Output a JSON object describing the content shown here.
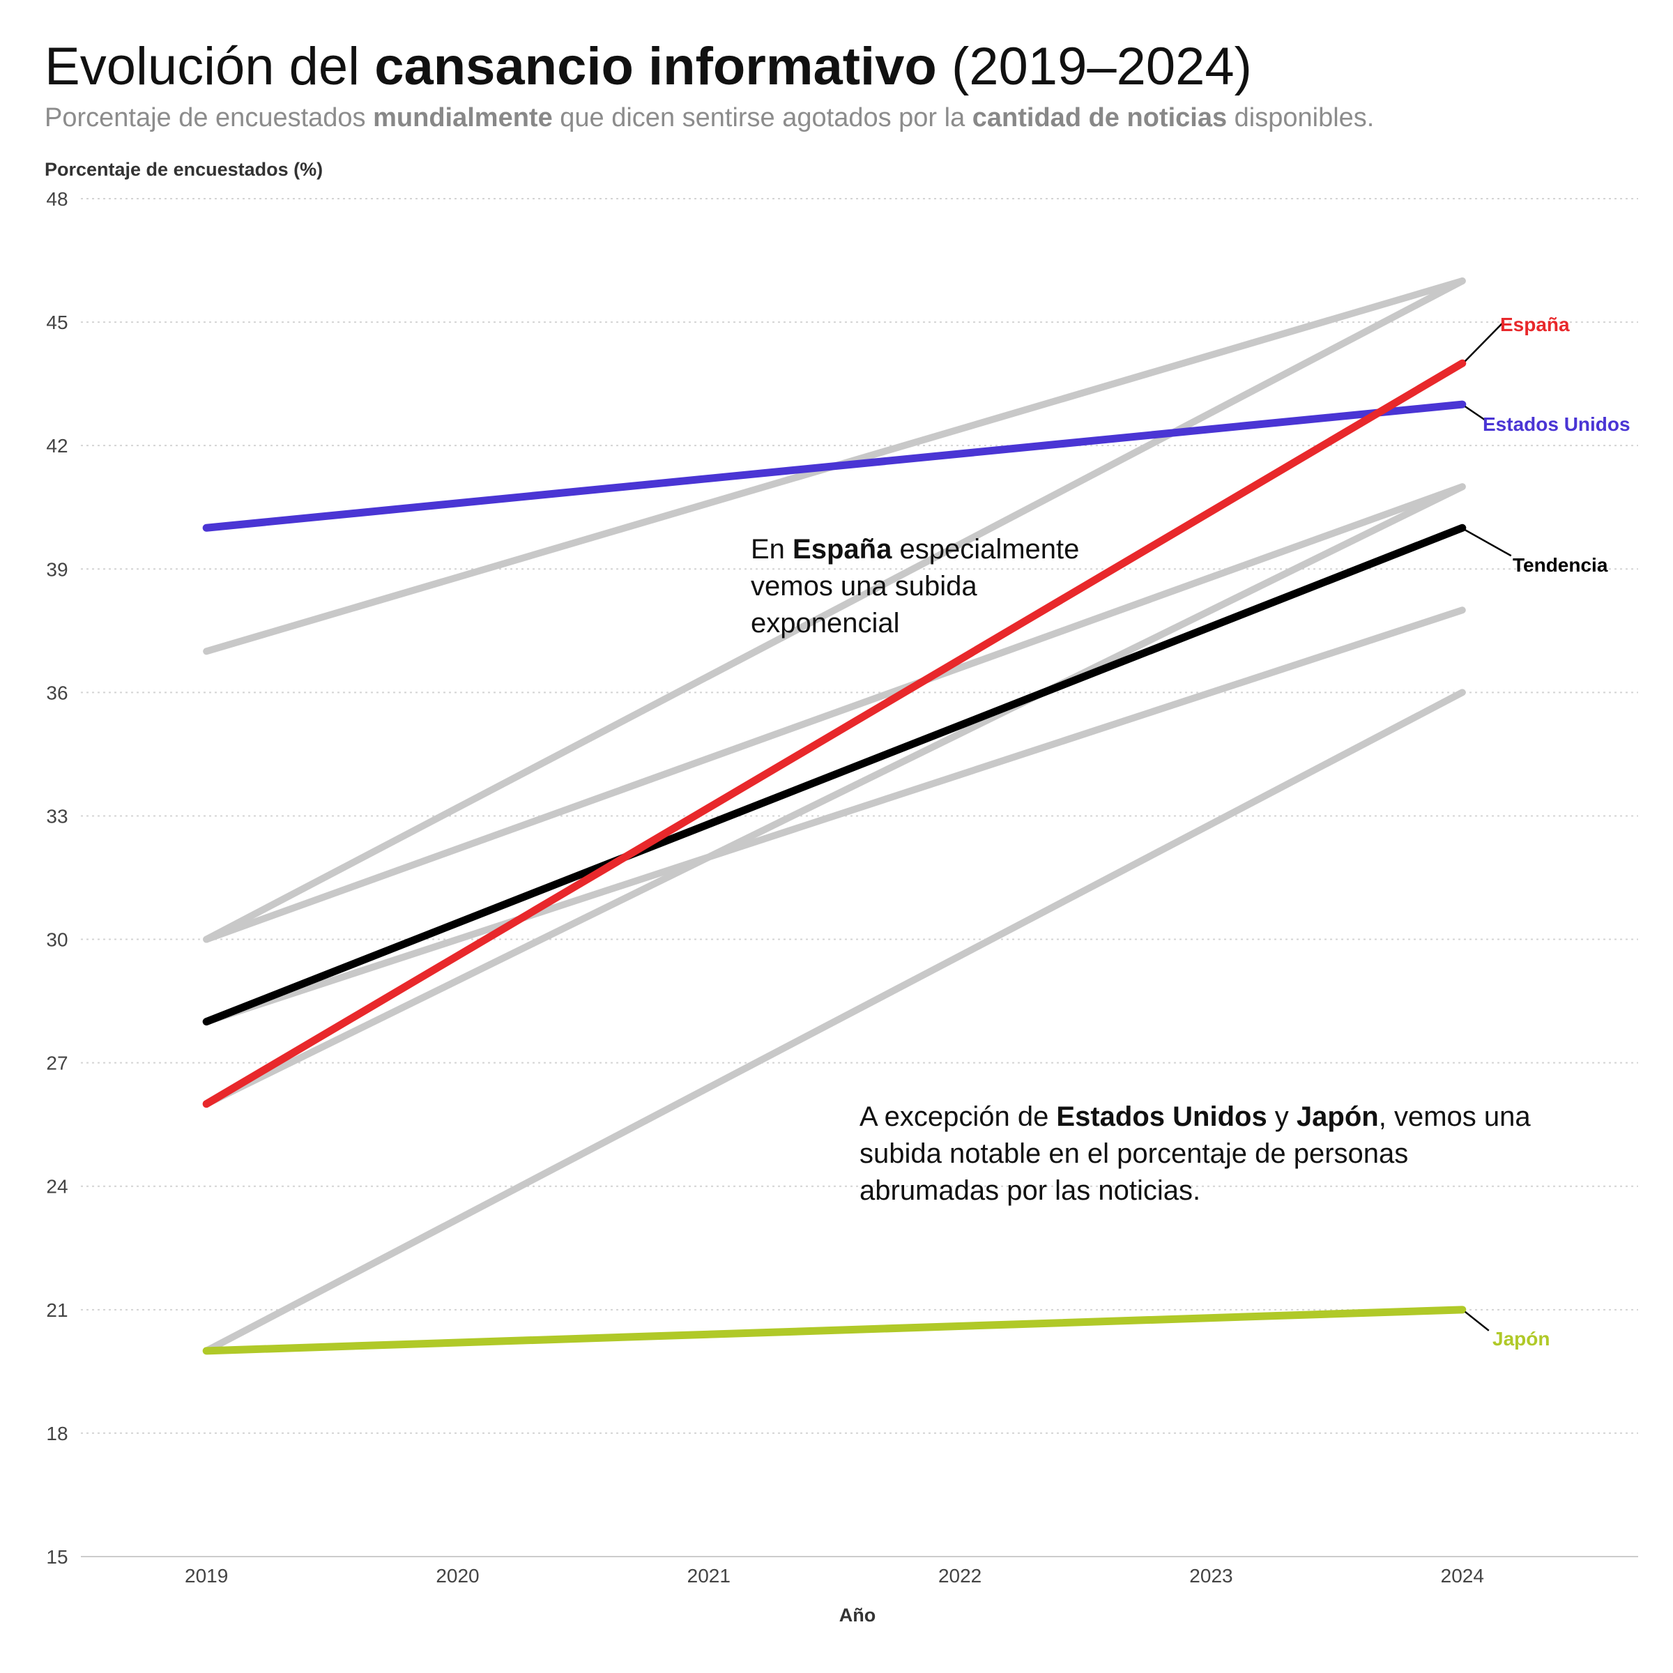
{
  "header": {
    "title_pre": "Evolución del ",
    "title_bold": "cansancio informativo",
    "title_post": " (2019–2024)",
    "subtitle_1": "Porcentaje de encuestados ",
    "subtitle_bold_1": "mundialmente",
    "subtitle_2": " que dicen sentirse agotados por la ",
    "subtitle_bold_2": "cantidad de noticias",
    "subtitle_3": " disponibles."
  },
  "annotations": {
    "spain_pre": "En ",
    "spain_bold": "España",
    "spain_line1_post": " especialmente",
    "spain_line2": "vemos una subida",
    "spain_line3": "exponencial",
    "excepcion_pre": "A excepción de ",
    "excepcion_bold_1": "Estados Unidos",
    "excepcion_mid": " y ",
    "excepcion_bold_2": "Japón",
    "excepcion_line1_post": ", vemos una",
    "excepcion_line2": "subida notable en el porcentaje de personas",
    "excepcion_line3": "abrumadas por las noticias."
  },
  "chart_data": {
    "type": "line",
    "title": "Evolución del cansancio informativo (2019–2024)",
    "subtitle": "Porcentaje de encuestados mundialmente que dicen sentirse agotados por la cantidad de noticias disponibles.",
    "xlabel": "Año",
    "ylabel": "Porcentaje de encuestados (%)",
    "x": [
      2019,
      2024
    ],
    "x_ticks": [
      2019,
      2020,
      2021,
      2022,
      2023,
      2024
    ],
    "y_ticks": [
      15,
      18,
      21,
      24,
      27,
      30,
      33,
      36,
      39,
      42,
      45,
      48
    ],
    "ylim": [
      15,
      48
    ],
    "xlim": [
      2018.5,
      2024.7
    ],
    "grid": "horizontal dotted",
    "background_series": [
      {
        "values": [
          37,
          46
        ]
      },
      {
        "values": [
          30,
          46
        ]
      },
      {
        "values": [
          30,
          41
        ]
      },
      {
        "values": [
          26,
          41
        ]
      },
      {
        "values": [
          28,
          38
        ]
      },
      {
        "values": [
          20,
          36
        ]
      }
    ],
    "series": [
      {
        "name": "España",
        "values": [
          26,
          44
        ],
        "color": "#e8282b"
      },
      {
        "name": "Estados Unidos",
        "values": [
          40,
          43
        ],
        "color": "#4a35d4"
      },
      {
        "name": "Tendencia",
        "values": [
          28,
          40
        ],
        "color": "#000000"
      },
      {
        "name": "Japón",
        "values": [
          20,
          21
        ],
        "color": "#b0c928"
      }
    ],
    "background_color": "#c8c8c8"
  }
}
